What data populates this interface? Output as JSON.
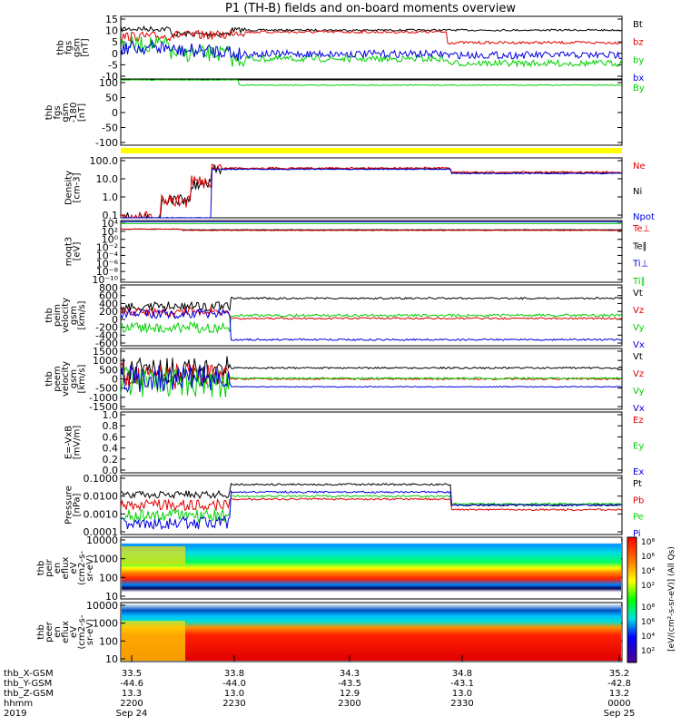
{
  "title": "P1 (TH-B) fields and on-board moments overview",
  "colors": {
    "black": "#000000",
    "red": "#e00000",
    "green": "#00d000",
    "blue": "#0000e0",
    "yellow": "#ffff00"
  },
  "chart_data": [
    {
      "type": "line",
      "panel": "fgs_gsm",
      "ylabel": [
        "thb",
        "fgs",
        "gsm",
        "[nT]"
      ],
      "yticks": [
        "15",
        "10",
        "5",
        "0",
        "-5",
        "-10"
      ],
      "ylim": [
        -10,
        15
      ],
      "legend": [
        {
          "name": "Bt",
          "color": "#000000"
        },
        {
          "name": "bz",
          "color": "#e00000"
        },
        {
          "name": "by",
          "color": "#00d000"
        },
        {
          "name": "bx",
          "color": "#0000e0"
        }
      ]
    },
    {
      "type": "line",
      "panel": "fgs_gsm_180",
      "ylabel": [
        "thb",
        "fgs",
        "gsm",
        "-180",
        "[nT]"
      ],
      "yticks": [
        "100",
        "50",
        "0",
        "-50",
        "-100"
      ],
      "ylim": [
        -125,
        125
      ],
      "legend": [
        {
          "name": "By",
          "color": "#00d000"
        }
      ]
    },
    {
      "type": "line",
      "panel": "density",
      "ylabel": [
        "Density",
        "[cm-3]"
      ],
      "yticks": [
        "100.0",
        "10.0",
        "1.0",
        "0.1"
      ],
      "scale": "log",
      "ylim": [
        0.02,
        200
      ],
      "legend": [
        {
          "name": "Ne",
          "color": "#e00000"
        },
        {
          "name": "Ni",
          "color": "#000000"
        },
        {
          "name": "Npot",
          "color": "#0000e0"
        }
      ]
    },
    {
      "type": "line",
      "panel": "temperature",
      "ylabel": [
        "moqt3",
        "[eV]"
      ],
      "yticks": [
        "10⁴",
        "10²",
        "10⁰",
        "10⁻²",
        "10⁻⁴",
        "10⁻⁶",
        "10⁻⁸",
        "10⁻¹⁰"
      ],
      "scale": "log",
      "legend": [
        {
          "name": "Te⊥",
          "color": "#e00000"
        },
        {
          "name": "Te∥",
          "color": "#000000"
        },
        {
          "name": "Ti⊥",
          "color": "#0000e0"
        },
        {
          "name": "Ti∥",
          "color": "#00d000"
        }
      ]
    },
    {
      "type": "line",
      "panel": "peim_velocity",
      "ylabel": [
        "thb",
        "peim",
        "velocity",
        "gsm",
        "[km/s]"
      ],
      "yticks": [
        "800",
        "600",
        "400",
        "200",
        "0",
        "-200",
        "-400",
        "-600"
      ],
      "ylim": [
        -600,
        800
      ],
      "legend": [
        {
          "name": "Vt",
          "color": "#000000"
        },
        {
          "name": "Vz",
          "color": "#e00000"
        },
        {
          "name": "Vy",
          "color": "#00d000"
        },
        {
          "name": "Vx",
          "color": "#0000e0"
        }
      ]
    },
    {
      "type": "line",
      "panel": "peem_velocity",
      "ylabel": [
        "thb",
        "peem",
        "velocity",
        "gsm",
        "[km/s]"
      ],
      "yticks": [
        "1500",
        "1000",
        "500",
        "0",
        "-500",
        "-1000",
        "-1500"
      ],
      "ylim": [
        -1500,
        1500
      ],
      "legend": [
        {
          "name": "Vt",
          "color": "#000000"
        },
        {
          "name": "Vz",
          "color": "#e00000"
        },
        {
          "name": "Vy",
          "color": "#00d000"
        },
        {
          "name": "Vx",
          "color": "#0000e0"
        }
      ]
    },
    {
      "type": "line",
      "panel": "efield",
      "ylabel": [
        "E=-VxB",
        "[mV/m]"
      ],
      "yticks": [
        "1.0",
        "0.8",
        "0.6",
        "0.4",
        "0.2",
        "0.0"
      ],
      "ylim": [
        0,
        1
      ],
      "legend": [
        {
          "name": "Ez",
          "color": "#e00000"
        },
        {
          "name": "Ey",
          "color": "#00d000"
        },
        {
          "name": "Ex",
          "color": "#0000e0"
        }
      ]
    },
    {
      "type": "line",
      "panel": "pressure",
      "ylabel": [
        "Pressure",
        "[nPa]"
      ],
      "yticks": [
        "0.1000",
        "0.0100",
        "0.0010",
        "0.0001"
      ],
      "scale": "log",
      "legend": [
        {
          "name": "Pt",
          "color": "#000000"
        },
        {
          "name": "Pb",
          "color": "#e00000"
        },
        {
          "name": "Pe",
          "color": "#00d000"
        },
        {
          "name": "Pi",
          "color": "#0000e0"
        }
      ]
    },
    {
      "type": "heatmap",
      "panel": "peir_en_eflux",
      "ylabel": [
        "thb",
        "peir",
        "en",
        "eflux",
        "eV",
        "(cm2-s-",
        "sr-eV)"
      ],
      "yticks": [
        "10000",
        "1000",
        "100",
        "10"
      ],
      "scale": "log"
    },
    {
      "type": "heatmap",
      "panel": "peer_en_eflux",
      "ylabel": [
        "thb",
        "peer",
        "en",
        "eflux",
        "eV",
        "(cm2-s-",
        "sr-eV)"
      ],
      "yticks": [
        "10000",
        "1000",
        "100",
        "10"
      ],
      "scale": "log"
    }
  ],
  "colorbar": {
    "label": "[eV/(cm²-s-sr-eV)] (All Qs)",
    "ticks_upper": [
      "10⁸",
      "10⁶",
      "10⁴",
      "10²"
    ],
    "ticks_lower": [
      "10⁸",
      "10⁶",
      "10⁴",
      "10²"
    ]
  },
  "x_axis": {
    "row_labels": [
      "thb_X-GSM",
      "thb_Y-GSM",
      "thb_Z-GSM",
      "hhmm",
      "2019"
    ],
    "ticks": [
      {
        "x": "33.5",
        "y": "-44.6",
        "z": "13.3",
        "hhmm": "2200",
        "date": "Sep 24"
      },
      {
        "x": "33.8",
        "y": "-44.0",
        "z": "13.0",
        "hhmm": "2230",
        "date": ""
      },
      {
        "x": "34.3",
        "y": "-43.5",
        "z": "12.9",
        "hhmm": "2300",
        "date": ""
      },
      {
        "x": "34.8",
        "y": "-43.1",
        "z": "13.0",
        "hhmm": "2330",
        "date": ""
      },
      {
        "x": "35.2",
        "y": "-42.8",
        "z": "13.2",
        "hhmm": "0000",
        "date": "Sep 25"
      }
    ]
  }
}
